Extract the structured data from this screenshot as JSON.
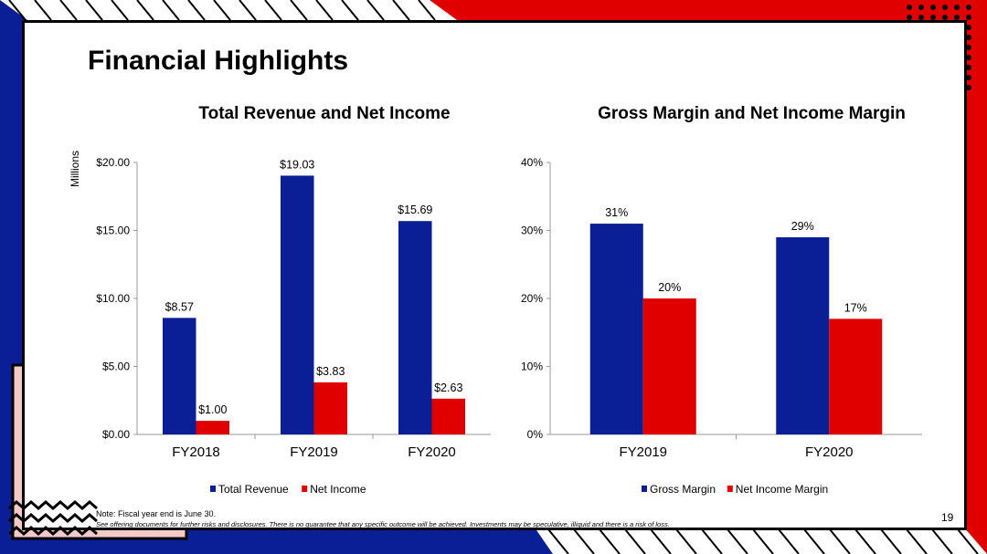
{
  "title": "Financial Highlights",
  "note": "Note: Fiscal year end is June 30.",
  "disclaimer": "See offering documents for further risks and disclosures. There is no guarantee that any specific outcome will be achieved. Investments may be speculative, illiquid and there is a risk of loss.",
  "page_number": "19",
  "colors": {
    "blue": "#0a1f96",
    "red": "#e00000"
  },
  "chart_data": [
    {
      "type": "bar",
      "title": "Total Revenue and Net Income",
      "ylabel": "Millions",
      "categories": [
        "FY2018",
        "FY2019",
        "FY2020"
      ],
      "series": [
        {
          "name": "Total Revenue",
          "values": [
            8.57,
            19.03,
            15.69
          ],
          "labels": [
            "$8.57",
            "$19.03",
            "$15.69"
          ],
          "color": "#0a1f96"
        },
        {
          "name": "Net Income",
          "values": [
            1.0,
            3.83,
            2.63
          ],
          "labels": [
            "$1.00",
            "$3.83",
            "$2.63"
          ],
          "color": "#e00000"
        }
      ],
      "ylim": [
        0,
        20
      ],
      "yticks": [
        "$0.00",
        "$5.00",
        "$10.00",
        "$15.00",
        "$20.00"
      ],
      "legend": "bottom"
    },
    {
      "type": "bar",
      "title": "Gross Margin and Net Income Margin",
      "categories": [
        "FY2019",
        "FY2020"
      ],
      "series": [
        {
          "name": "Gross Margin",
          "values": [
            31,
            29
          ],
          "labels": [
            "31%",
            "29%"
          ],
          "color": "#0a1f96"
        },
        {
          "name": "Net Income Margin",
          "values": [
            20,
            17
          ],
          "labels": [
            "20%",
            "17%"
          ],
          "color": "#e00000"
        }
      ],
      "ylim": [
        0,
        40
      ],
      "yticks": [
        "0%",
        "10%",
        "20%",
        "30%",
        "40%"
      ],
      "legend": "bottom"
    }
  ]
}
